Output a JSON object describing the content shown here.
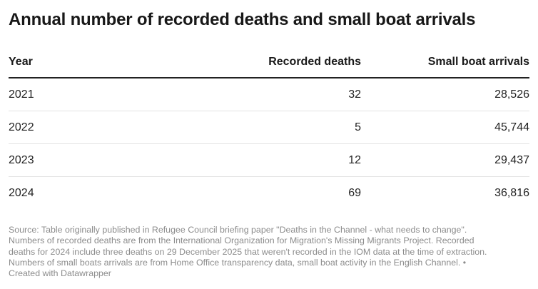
{
  "title": "Annual number of recorded deaths and small boat arrivals",
  "chart_data": {
    "type": "table",
    "title": "Annual number of recorded deaths and small boat arrivals",
    "columns": [
      "Year",
      "Recorded deaths",
      "Small boat arrivals"
    ],
    "rows": [
      {
        "year": "2021",
        "deaths": "32",
        "arrivals": "28,526"
      },
      {
        "year": "2022",
        "deaths": "5",
        "arrivals": "45,744"
      },
      {
        "year": "2023",
        "deaths": "12",
        "arrivals": "29,437"
      },
      {
        "year": "2024",
        "deaths": "69",
        "arrivals": "36,816"
      }
    ]
  },
  "footer": {
    "lines": [
      "Source: Table originally published in Refugee Council briefing paper \"Deaths in the Channel - what needs to change\".",
      "Numbers of recorded deaths are from the International Organization for Migration's Missing Migrants Project. Recorded",
      "deaths for 2024 include three deaths on 29 December 2025 that weren't recorded in the IOM data at the time of extraction.",
      "Numbers of small boats arrivals are from Home Office transparency data, small boat activity in the English Channel. •",
      "Created with Datawrapper"
    ]
  }
}
